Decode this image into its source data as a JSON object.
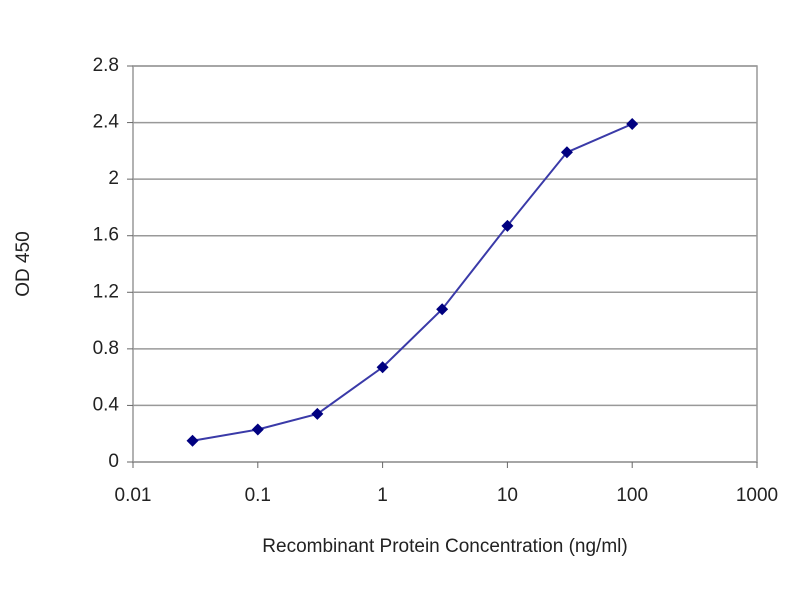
{
  "chart_data": {
    "type": "line",
    "xlabel": "Recombinant Protein Concentration (ng/ml)",
    "ylabel": "OD 450",
    "x": [
      0.03,
      0.1,
      0.3,
      1,
      3,
      10,
      30,
      100
    ],
    "values": [
      0.15,
      0.23,
      0.34,
      0.67,
      1.08,
      1.67,
      2.19,
      2.39
    ],
    "color": "#3a3aa8",
    "marker_color": "#000080",
    "xscale": "log",
    "xlim": [
      0.01,
      1000
    ],
    "xticks": [
      0.01,
      0.1,
      1,
      10,
      100,
      1000
    ],
    "ylim": [
      0,
      2.8
    ],
    "yticks": [
      0,
      0.4,
      0.8,
      1.2,
      1.6,
      2,
      2.4,
      2.8
    ],
    "grid": true
  }
}
